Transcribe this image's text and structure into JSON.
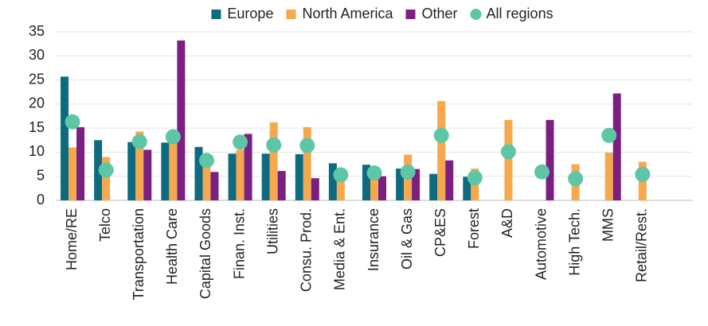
{
  "chart_data": {
    "type": "bar",
    "categories": [
      "Home/RE",
      "Telco",
      "Transportation",
      "Health Care",
      "Capital Goods",
      "Finan. Inst.",
      "Utilities",
      "Consu. Prod.",
      "Media & Ent.",
      "Insurance",
      "Oil & Gas",
      "CP&ES",
      "Forest",
      "A&D",
      "Automotive",
      "High Tech.",
      "MMS",
      "Retail/Rest.",
      null
    ],
    "series": [
      {
        "name": "Europe",
        "color": "#0e6a7e",
        "values": [
          25.7,
          12.5,
          12.1,
          12.0,
          11.1,
          9.7,
          9.7,
          9.6,
          7.7,
          7.4,
          6.6,
          5.5,
          4.9,
          null,
          null,
          null,
          null,
          null,
          null
        ]
      },
      {
        "name": "North America",
        "color": "#f5a84e",
        "values": [
          11.0,
          9.0,
          14.3,
          12.5,
          7.8,
          10.5,
          16.2,
          15.2,
          4.5,
          5.5,
          9.5,
          20.6,
          6.6,
          16.7,
          null,
          7.5,
          9.9,
          8.0,
          null
        ]
      },
      {
        "name": "Other",
        "color": "#7b1f80",
        "values": [
          15.2,
          null,
          10.5,
          33.2,
          5.9,
          13.8,
          6.1,
          4.6,
          null,
          5.0,
          6.5,
          8.3,
          null,
          null,
          16.7,
          null,
          22.2,
          null,
          null
        ]
      },
      {
        "name": "All regions",
        "type": "scatter",
        "color": "#5cc6a6",
        "values": [
          16.3,
          6.3,
          12.2,
          13.2,
          8.3,
          12.1,
          11.5,
          11.4,
          5.3,
          5.7,
          5.9,
          13.5,
          4.7,
          10.1,
          5.9,
          4.5,
          13.5,
          5.4,
          null
        ]
      }
    ],
    "ylim": [
      0,
      35
    ],
    "yticks": [
      0,
      5,
      10,
      15,
      20,
      25,
      30,
      35
    ],
    "grid": true,
    "legend": "top"
  }
}
